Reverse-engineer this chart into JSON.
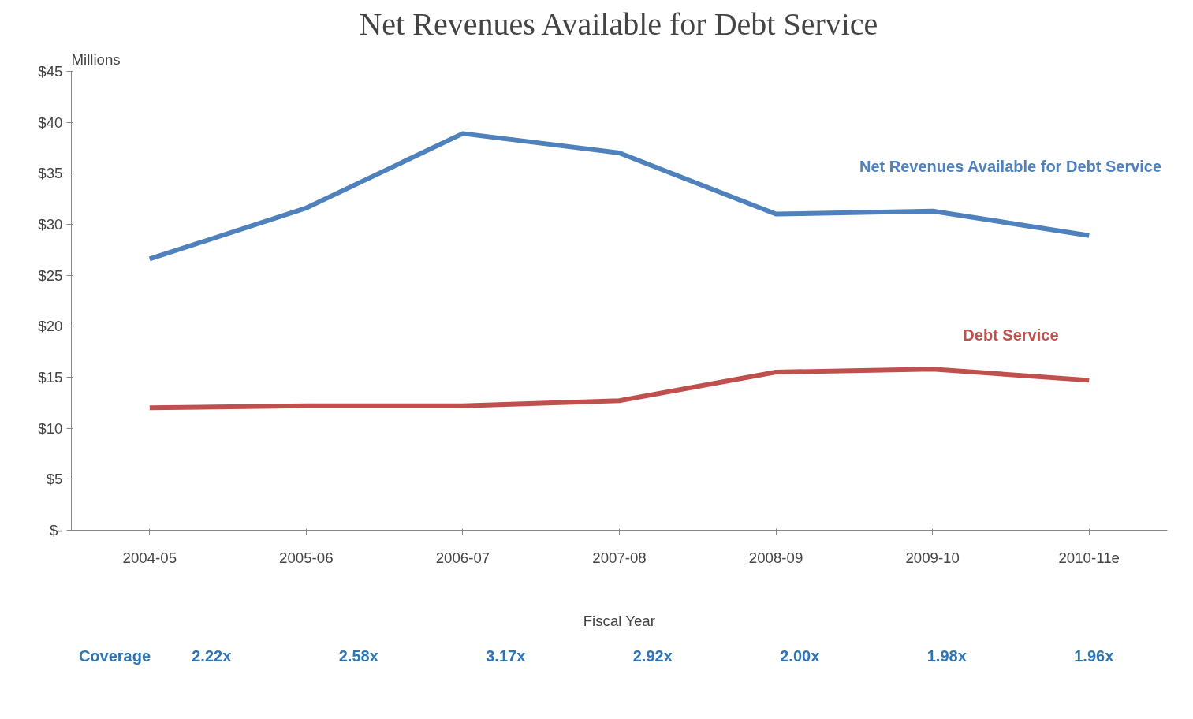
{
  "chart_data": {
    "type": "line",
    "title": "Net Revenues Available for Debt Service",
    "xlabel": "Fiscal Year",
    "ylabel": "Millions",
    "categories": [
      "2004-05",
      "2005-06",
      "2006-07",
      "2007-08",
      "2008-09",
      "2009-10",
      "2010-11e"
    ],
    "series": [
      {
        "name": "Net Revenues Available for Debt Service",
        "color": "#4f81bd",
        "values": [
          26.6,
          31.6,
          38.9,
          37.0,
          31.0,
          31.3,
          28.9
        ]
      },
      {
        "name": "Debt Service",
        "color": "#c0504d",
        "values": [
          12.0,
          12.2,
          12.2,
          12.7,
          15.5,
          15.8,
          14.7
        ]
      }
    ],
    "ylim": [
      0,
      45
    ],
    "yticks": [
      {
        "value": 0,
        "label": "$-"
      },
      {
        "value": 5,
        "label": "$5"
      },
      {
        "value": 10,
        "label": "$10"
      },
      {
        "value": 15,
        "label": "$15"
      },
      {
        "value": 20,
        "label": "$20"
      },
      {
        "value": 25,
        "label": "$25"
      },
      {
        "value": 30,
        "label": "$30"
      },
      {
        "value": 35,
        "label": "$35"
      },
      {
        "value": 40,
        "label": "$40"
      },
      {
        "value": 45,
        "label": "$45"
      }
    ],
    "grid": false,
    "legend": false,
    "marker": "none",
    "line_style": "solid",
    "annotations": [
      "Coverage",
      "2.22x",
      "2.58x",
      "3.17x",
      "2.92x",
      "2.00x",
      "1.98x",
      "1.96x"
    ]
  }
}
